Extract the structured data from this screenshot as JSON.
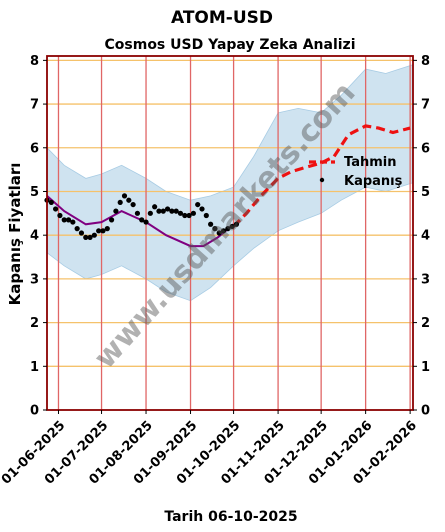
{
  "chart_data": {
    "type": "line",
    "title": "ATOM-USD",
    "subtitle": "Cosmos USD Yapay Zeka Analizi",
    "ylabel": "Kapanış Fiyatları",
    "xlabel": "",
    "footer": "Tarih 06-10-2025",
    "watermark": "www.usdmarkets.com",
    "ylim": [
      0,
      8.1
    ],
    "xlim": [
      "2025-05-24",
      "2026-02-03"
    ],
    "y_ticks": [
      0,
      1,
      2,
      3,
      4,
      5,
      6,
      7,
      8
    ],
    "x_ticks": [
      "2025-06-01",
      "2025-07-01",
      "2025-08-01",
      "2025-09-01",
      "2025-10-01",
      "2025-11-01",
      "2025-12-01",
      "2026-01-01",
      "2026-02-01"
    ],
    "x_tick_labels": [
      "01-06-2025",
      "01-07-2025",
      "01-08-2025",
      "01-09-2025",
      "01-10-2025",
      "01-11-2025",
      "01-12-2025",
      "01-01-2026",
      "01-02-2026"
    ],
    "grid": true,
    "legend_position": "right",
    "colors": {
      "frame": "#8b0000",
      "vgrid": "#e06666",
      "hgrid": "#f5c26b",
      "band": "#a8cce4",
      "trend": "#800080",
      "forecast": "#ee1111",
      "points": "#000000"
    },
    "series": [
      {
        "name": "Kapanış",
        "kind": "scatter",
        "x": [
          "2025-05-24",
          "2025-05-27",
          "2025-05-30",
          "2025-06-02",
          "2025-06-05",
          "2025-06-08",
          "2025-06-11",
          "2025-06-14",
          "2025-06-17",
          "2025-06-20",
          "2025-06-23",
          "2025-06-26",
          "2025-06-29",
          "2025-07-02",
          "2025-07-05",
          "2025-07-08",
          "2025-07-11",
          "2025-07-14",
          "2025-07-17",
          "2025-07-20",
          "2025-07-23",
          "2025-07-26",
          "2025-07-29",
          "2025-08-01",
          "2025-08-04",
          "2025-08-07",
          "2025-08-10",
          "2025-08-13",
          "2025-08-16",
          "2025-08-19",
          "2025-08-22",
          "2025-08-25",
          "2025-08-28",
          "2025-08-31",
          "2025-09-03",
          "2025-09-06",
          "2025-09-09",
          "2025-09-12",
          "2025-09-15",
          "2025-09-18",
          "2025-09-21",
          "2025-09-24",
          "2025-09-27",
          "2025-09-30",
          "2025-10-03"
        ],
        "y": [
          4.8,
          4.75,
          4.6,
          4.45,
          4.35,
          4.35,
          4.3,
          4.15,
          4.05,
          3.95,
          3.95,
          4.0,
          4.1,
          4.1,
          4.15,
          4.35,
          4.55,
          4.75,
          4.9,
          4.8,
          4.7,
          4.5,
          4.35,
          4.3,
          4.5,
          4.65,
          4.55,
          4.55,
          4.6,
          4.55,
          4.55,
          4.5,
          4.45,
          4.45,
          4.5,
          4.7,
          4.6,
          4.45,
          4.25,
          4.15,
          4.05,
          4.1,
          4.15,
          4.2,
          4.25
        ]
      },
      {
        "name": "",
        "kind": "trend",
        "x": [
          "2025-05-24",
          "2025-06-05",
          "2025-06-20",
          "2025-07-01",
          "2025-07-15",
          "2025-08-01",
          "2025-08-15",
          "2025-09-01",
          "2025-09-10",
          "2025-09-20",
          "2025-10-01"
        ],
        "y": [
          4.9,
          4.55,
          4.25,
          4.3,
          4.55,
          4.3,
          4.0,
          3.75,
          3.75,
          3.95,
          4.25
        ]
      },
      {
        "name": "Tahmin",
        "kind": "forecast",
        "x": [
          "2025-10-01",
          "2025-10-10",
          "2025-10-20",
          "2025-11-01",
          "2025-11-10",
          "2025-11-20",
          "2025-12-01",
          "2025-12-10",
          "2025-12-20",
          "2026-01-01",
          "2026-01-10",
          "2026-01-20",
          "2026-02-01"
        ],
        "y": [
          4.2,
          4.5,
          4.9,
          5.3,
          5.45,
          5.55,
          5.65,
          5.8,
          6.3,
          6.5,
          6.45,
          6.35,
          6.45
        ]
      },
      {
        "name": "",
        "kind": "band",
        "x": [
          "2025-05-24",
          "2025-06-05",
          "2025-06-20",
          "2025-07-01",
          "2025-07-15",
          "2025-08-01",
          "2025-08-15",
          "2025-09-01",
          "2025-09-15",
          "2025-10-01",
          "2025-10-15",
          "2025-11-01",
          "2025-11-15",
          "2025-12-01",
          "2025-12-15",
          "2026-01-01",
          "2026-01-15",
          "2026-02-03"
        ],
        "lower": [
          3.6,
          3.3,
          3.0,
          3.1,
          3.3,
          3.0,
          2.7,
          2.5,
          2.8,
          3.3,
          3.7,
          4.1,
          4.3,
          4.5,
          4.8,
          5.1,
          5.0,
          5.2
        ],
        "upper": [
          6.0,
          5.6,
          5.3,
          5.4,
          5.6,
          5.3,
          5.0,
          4.8,
          4.9,
          5.1,
          5.8,
          6.8,
          6.9,
          6.8,
          7.2,
          7.8,
          7.7,
          7.9
        ]
      }
    ]
  }
}
